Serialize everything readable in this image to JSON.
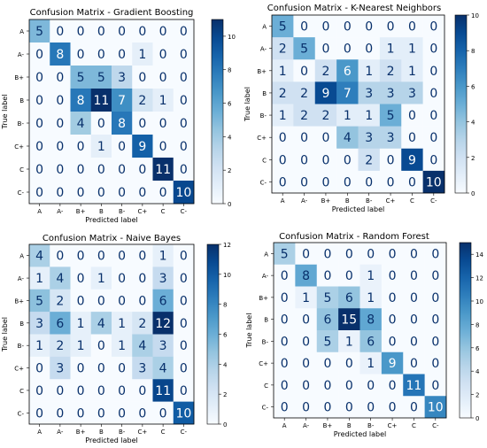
{
  "chart_data": [
    {
      "type": "heatmap",
      "title": "Confusion Matrix - Gradient Boosting",
      "xlabel": "Predicted label",
      "ylabel": "True label",
      "labels": [
        "A",
        "A-",
        "B+",
        "B",
        "B-",
        "C+",
        "C",
        "C-"
      ],
      "values": [
        [
          5,
          0,
          0,
          0,
          0,
          0,
          0,
          0
        ],
        [
          0,
          8,
          0,
          0,
          0,
          1,
          0,
          0
        ],
        [
          0,
          0,
          5,
          5,
          3,
          0,
          0,
          0
        ],
        [
          0,
          0,
          8,
          11,
          7,
          2,
          1,
          0
        ],
        [
          0,
          0,
          4,
          0,
          8,
          0,
          0,
          0
        ],
        [
          0,
          0,
          0,
          1,
          0,
          9,
          0,
          0
        ],
        [
          0,
          0,
          0,
          0,
          0,
          0,
          11,
          0
        ],
        [
          0,
          0,
          0,
          0,
          0,
          0,
          0,
          10
        ]
      ],
      "colorbar": {
        "min": 0,
        "max": 11,
        "ticks": [
          0,
          2,
          4,
          6,
          8,
          10
        ]
      }
    },
    {
      "type": "heatmap",
      "title": "Confusion Matrix - K-Nearest Neighbors",
      "xlabel": "Predicted label",
      "ylabel": "True label",
      "labels": [
        "A",
        "A-",
        "B+",
        "B",
        "B-",
        "C+",
        "C",
        "C-"
      ],
      "values": [
        [
          5,
          0,
          0,
          0,
          0,
          0,
          0,
          0
        ],
        [
          2,
          5,
          0,
          0,
          0,
          1,
          1,
          0
        ],
        [
          1,
          0,
          2,
          6,
          1,
          2,
          1,
          0
        ],
        [
          2,
          2,
          9,
          7,
          3,
          3,
          3,
          0
        ],
        [
          1,
          2,
          2,
          1,
          1,
          5,
          0,
          0
        ],
        [
          0,
          0,
          0,
          4,
          3,
          3,
          0,
          0
        ],
        [
          0,
          0,
          0,
          0,
          2,
          0,
          9,
          0
        ],
        [
          0,
          0,
          0,
          0,
          0,
          0,
          0,
          10
        ]
      ],
      "colorbar": {
        "min": 0,
        "max": 10,
        "ticks": [
          0,
          2,
          4,
          6,
          8,
          10
        ]
      }
    },
    {
      "type": "heatmap",
      "title": "Confusion Matrix - Naive Bayes",
      "xlabel": "Predicted label",
      "ylabel": "True label",
      "labels": [
        "A",
        "A-",
        "B+",
        "B",
        "B-",
        "C+",
        "C",
        "C-"
      ],
      "values": [
        [
          4,
          0,
          0,
          0,
          0,
          0,
          1,
          0
        ],
        [
          1,
          4,
          0,
          1,
          0,
          0,
          3,
          0
        ],
        [
          5,
          2,
          0,
          0,
          0,
          0,
          6,
          0
        ],
        [
          3,
          6,
          1,
          4,
          1,
          2,
          12,
          0
        ],
        [
          1,
          2,
          1,
          0,
          1,
          4,
          3,
          0
        ],
        [
          0,
          3,
          0,
          0,
          0,
          3,
          4,
          0
        ],
        [
          0,
          0,
          0,
          0,
          0,
          0,
          11,
          0
        ],
        [
          0,
          0,
          0,
          0,
          0,
          0,
          0,
          10
        ]
      ],
      "colorbar": {
        "min": 0,
        "max": 12,
        "ticks": [
          0,
          2,
          4,
          6,
          8,
          10,
          12
        ]
      }
    },
    {
      "type": "heatmap",
      "title": "Confusion Matrix - Random Forest",
      "xlabel": "Predicted label",
      "ylabel": "True label",
      "labels": [
        "A",
        "A-",
        "B+",
        "B",
        "B-",
        "C+",
        "C",
        "C-"
      ],
      "values": [
        [
          5,
          0,
          0,
          0,
          0,
          0,
          0,
          0
        ],
        [
          0,
          8,
          0,
          0,
          1,
          0,
          0,
          0
        ],
        [
          0,
          1,
          5,
          6,
          1,
          0,
          0,
          0
        ],
        [
          0,
          0,
          6,
          15,
          8,
          0,
          0,
          0
        ],
        [
          0,
          0,
          5,
          1,
          6,
          0,
          0,
          0
        ],
        [
          0,
          0,
          0,
          0,
          1,
          9,
          0,
          0
        ],
        [
          0,
          0,
          0,
          0,
          0,
          0,
          11,
          0
        ],
        [
          0,
          0,
          0,
          0,
          0,
          0,
          0,
          10
        ]
      ],
      "colorbar": {
        "min": 0,
        "max": 15,
        "ticks": [
          0,
          2,
          4,
          6,
          8,
          10,
          12,
          14
        ]
      }
    }
  ]
}
